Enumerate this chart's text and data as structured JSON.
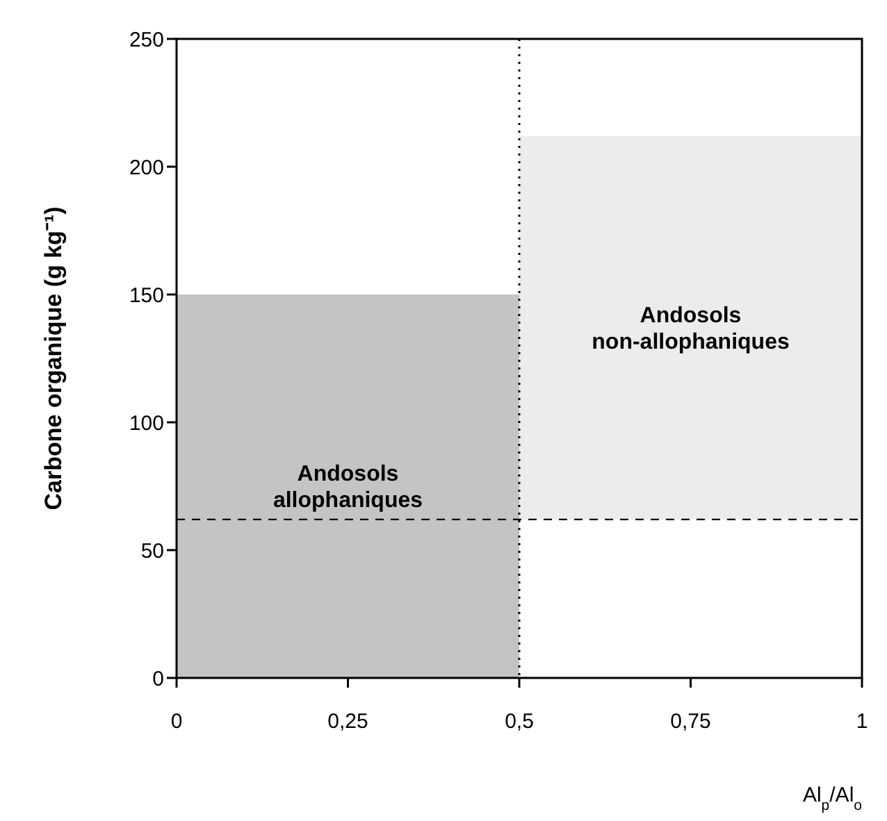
{
  "chart_data": {
    "type": "bar",
    "xlabel": "Al$_{p}$/Al$_{o}$",
    "ylabel": "Carbone organique (g kg⁻¹)",
    "x": [
      0.25,
      0.75
    ],
    "values": [
      150,
      150
    ],
    "base": [
      0,
      62
    ],
    "colors": [
      "#c4c4c4",
      "#ececec"
    ],
    "xlim": [
      0,
      1
    ],
    "xticks": [
      0,
      {
        "value": 0.25,
        "label": "0,25"
      },
      {
        "value": 0.5,
        "label": "0,5"
      },
      {
        "value": 0.75,
        "label": "0,75"
      },
      1
    ],
    "ylim": [
      0,
      250
    ],
    "yticks": [
      0,
      50,
      100,
      150,
      200,
      250
    ],
    "ref_lines": [
      {
        "axis": "y",
        "value": 62,
        "line_style": "dashed"
      },
      {
        "axis": "x",
        "value": 0.5,
        "line_style": "dotted"
      }
    ],
    "annotations": [
      "Andosols\nallophaniques",
      "Andosols\nnon-allophaniques"
    ],
    "grid": false
  }
}
